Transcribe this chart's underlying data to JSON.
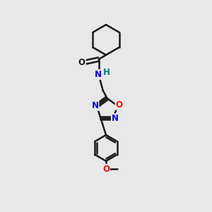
{
  "bg_color": "#e8e8e8",
  "atom_color_N": "#0000ee",
  "atom_color_O_red": "#ff0000",
  "atom_color_O_dark": "#1a1a1a",
  "atom_color_H": "#008080",
  "bond_color": "#1a1a1a",
  "bond_width": 1.8,
  "font_size_atoms": 8.5,
  "fig_width": 3.0,
  "fig_height": 3.0,
  "dpi": 100,
  "xlim": [
    0,
    10
  ],
  "ylim": [
    0,
    10
  ]
}
